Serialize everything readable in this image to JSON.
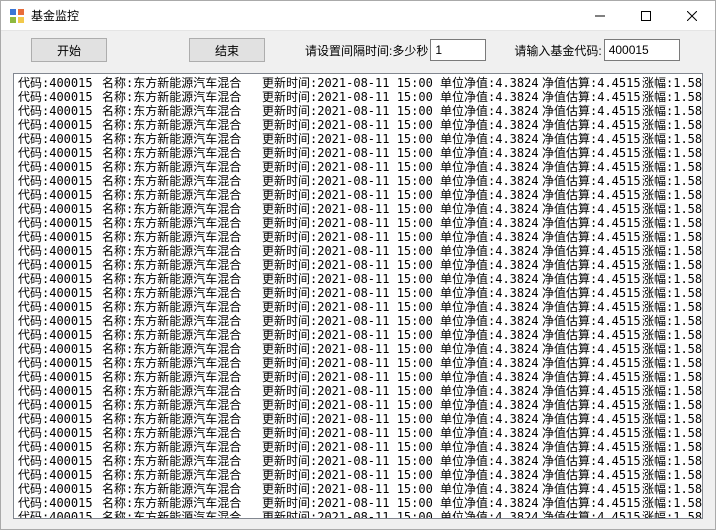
{
  "window": {
    "title": "基金监控",
    "icon_colors": {
      "tl": "#3a76d6",
      "tr": "#e86c3a",
      "bl": "#8fb93e",
      "br": "#f2c94c"
    }
  },
  "toolbar": {
    "start_label": "开始",
    "end_label": "结束",
    "interval_label": "请设置间隔时间:多少秒",
    "interval_value": "1",
    "code_label": "请输入基金代码:",
    "code_value": "400015"
  },
  "labels": {
    "code": "代码:",
    "name": "名称:",
    "update": "更新时间:",
    "nav": "单位净值:",
    "est": "净值估算:",
    "chg": "涨幅:"
  },
  "row_template": {
    "code": "400015",
    "name": "东方新能源汽车混合",
    "update": "2021-08-11 15:00",
    "nav": "4.3824",
    "est": "4.4515",
    "chg": "1.58"
  },
  "row_count": 33,
  "colors": {
    "window_bg": "#f0f0f0",
    "content_bg": "#ffffff",
    "border": "#828790",
    "text": "#000000"
  }
}
